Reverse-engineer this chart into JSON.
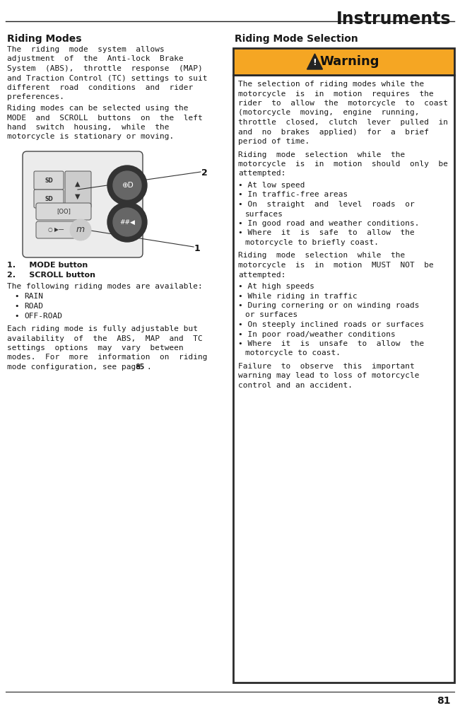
{
  "page_title": "Instruments",
  "page_number": "81",
  "bg_color": "#ffffff",
  "text_color": "#1a1a1a",
  "warning_bg": "#f5a623",
  "warning_border": "#2a2a2a",
  "section_heading_left": "Riding Modes",
  "section_heading_right": "Riding Mode Selection",
  "left_col_lines_p1": [
    "The  riding  mode  system  allows",
    "adjustment  of  the  Anti-lock  Brake",
    "System  (ABS),  throttle  response  (MAP)",
    "and Traction Control (TC) settings to suit",
    "different  road  conditions  and  rider",
    "preferences."
  ],
  "left_col_lines_p2": [
    "Riding modes can be selected using the",
    "MODE  and  SCROLL  buttons  on  the  left",
    "hand  switch  housing,  while  the",
    "motorcycle is stationary or moving."
  ],
  "items_label_1": "1.     MODE button",
  "items_label_2": "2.     SCROLL button",
  "list_intro": "The following riding modes are available:",
  "left_list": [
    "RAIN",
    "ROAD",
    "OFF-ROAD"
  ],
  "left_para3_lines": [
    "Each riding mode is fully adjustable but",
    "availability  of  the  ABS,  MAP  and  TC",
    "settings  options  may  vary  between",
    "modes.  For  more  information  on  riding",
    "mode configuration, see page "
  ],
  "wp1_lines": [
    "The selection of riding modes while the",
    "motorcycle  is  in  motion  requires  the",
    "rider  to  allow  the  motorcycle  to  coast",
    "(motorcycle  moving,  engine  running,",
    "throttle  closed,  clutch  lever  pulled  in",
    "and  no  brakes  applied)  for  a  brief",
    "period of time."
  ],
  "wp2_lines": [
    "Riding  mode  selection  while  the",
    "motorcycle  is  in  motion  should  only  be",
    "attempted:"
  ],
  "wl1": [
    "At low speed",
    "In traffic-free areas",
    "On  straight  and  level  roads  or",
    "surfaces",
    "In good road and weather conditions.",
    "Where  it  is  safe  to  allow  the",
    "motorcycle to briefly coast."
  ],
  "wl1_is_continuation": [
    false,
    false,
    false,
    true,
    false,
    false,
    true
  ],
  "wp3_lines": [
    "Riding  mode  selection  while  the",
    "motorcycle  is  in  motion  MUST  NOT  be",
    "attempted:"
  ],
  "wl2": [
    "At high speeds",
    "While riding in traffic",
    "During cornering or on winding roads",
    "or surfaces",
    "On steeply inclined roads or surfaces",
    "In poor road/weather conditions",
    "Where  it  is  unsafe  to  allow  the",
    "motorcycle to coast."
  ],
  "wl2_is_continuation": [
    false,
    false,
    false,
    true,
    false,
    false,
    false,
    true
  ],
  "wp4_lines": [
    "Failure  to  observe  this  important",
    "warning may lead to loss of motorcycle",
    "control and an accident."
  ]
}
